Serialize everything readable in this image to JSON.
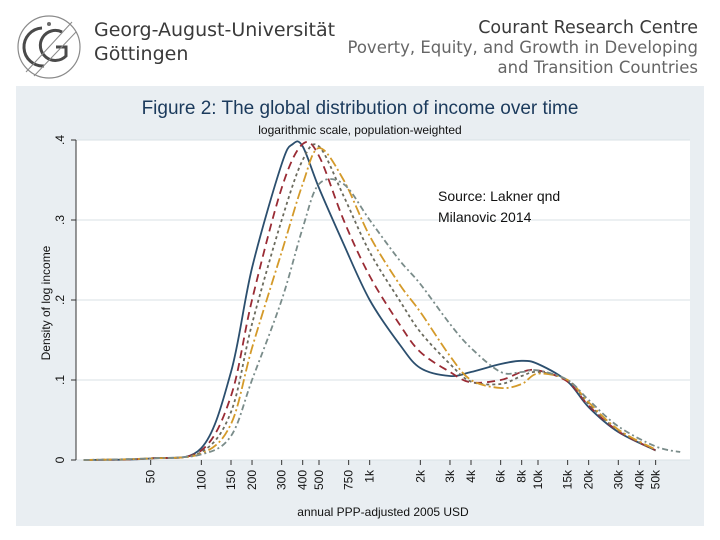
{
  "header": {
    "university_line1": "Georg-August-Universität",
    "university_line2": "Göttingen",
    "centre_line1": "Courant Research Centre",
    "centre_line2": "Poverty, Equity, and Growth in Developing",
    "centre_line3": "and Transition Countries"
  },
  "note": {
    "line1": "Source: Lakner qnd",
    "line2": "Milanovic 2014"
  },
  "chart_data": {
    "type": "line",
    "title": "Figure 2: The global distribution of income over time",
    "subtitle": "logarithmic scale, population-weighted",
    "xlabel": "annual PPP-adjusted 2005 USD",
    "ylabel": "Density of log income",
    "x_scale": "log",
    "xlim": [
      18,
      80000
    ],
    "ylim": [
      0,
      0.4
    ],
    "x_ticks": [
      50,
      100,
      150,
      200,
      300,
      400,
      500,
      750,
      1000,
      2000,
      3000,
      4000,
      6000,
      8000,
      10000,
      15000,
      20000,
      30000,
      40000,
      50000
    ],
    "x_tick_labels": [
      "50",
      "100",
      "150",
      "200",
      "300",
      "400",
      "500",
      "750",
      "1k",
      "2k",
      "3k",
      "4k",
      "6k",
      "8k",
      "10k",
      "15k",
      "20k",
      "30k",
      "40k",
      "50k"
    ],
    "y_ticks": [
      0,
      0.1,
      0.2,
      0.3,
      0.4
    ],
    "y_tick_labels": [
      "0",
      ".1",
      ".2",
      ".3",
      ".4"
    ],
    "grid": true,
    "legend": "none",
    "series": [
      {
        "color": "#2c4f6e",
        "dash": "solid",
        "x": [
          20,
          50,
          100,
          150,
          200,
          300,
          350,
          400,
          500,
          700,
          1000,
          1500,
          2000,
          3000,
          4000,
          6000,
          8000,
          10000,
          15000,
          20000,
          30000,
          50000
        ],
        "y": [
          0,
          0.002,
          0.015,
          0.11,
          0.24,
          0.37,
          0.395,
          0.392,
          0.34,
          0.27,
          0.2,
          0.145,
          0.115,
          0.105,
          0.11,
          0.12,
          0.124,
          0.12,
          0.098,
          0.066,
          0.035,
          0.012
        ]
      },
      {
        "color": "#9a2b34",
        "dash": "8,5",
        "x": [
          20,
          50,
          100,
          150,
          200,
          300,
          400,
          500,
          700,
          1000,
          1500,
          2000,
          3000,
          4000,
          6000,
          8000,
          10000,
          15000,
          20000,
          30000,
          50000
        ],
        "y": [
          0,
          0.002,
          0.012,
          0.08,
          0.2,
          0.34,
          0.395,
          0.38,
          0.3,
          0.23,
          0.17,
          0.135,
          0.11,
          0.097,
          0.1,
          0.11,
          0.112,
          0.098,
          0.068,
          0.036,
          0.012
        ]
      },
      {
        "color": "#6b6b5e",
        "dash": "3,3",
        "x": [
          20,
          50,
          100,
          150,
          200,
          300,
          400,
          500,
          700,
          1000,
          1500,
          2000,
          3000,
          4000,
          6000,
          8000,
          10000,
          15000,
          20000,
          30000,
          50000
        ],
        "y": [
          0,
          0.002,
          0.01,
          0.06,
          0.17,
          0.3,
          0.375,
          0.392,
          0.33,
          0.26,
          0.2,
          0.16,
          0.12,
          0.098,
          0.095,
          0.105,
          0.11,
          0.1,
          0.07,
          0.037,
          0.012
        ]
      },
      {
        "color": "#d49a2a",
        "dash": "10,3,2,3",
        "x": [
          20,
          50,
          100,
          150,
          200,
          300,
          400,
          500,
          700,
          1000,
          1500,
          2000,
          3000,
          4000,
          6000,
          8000,
          10000,
          15000,
          20000,
          30000,
          50000
        ],
        "y": [
          0,
          0.002,
          0.008,
          0.045,
          0.14,
          0.26,
          0.345,
          0.39,
          0.35,
          0.28,
          0.22,
          0.185,
          0.13,
          0.1,
          0.09,
          0.095,
          0.108,
          0.1,
          0.072,
          0.038,
          0.013
        ]
      },
      {
        "color": "#7a8c8a",
        "dash": "6,3,2,3",
        "x": [
          20,
          50,
          100,
          150,
          200,
          300,
          400,
          500,
          700,
          1000,
          1500,
          2000,
          3000,
          4000,
          6000,
          8000,
          10000,
          15000,
          20000,
          30000,
          50000,
          70000
        ],
        "y": [
          0,
          0.002,
          0.007,
          0.03,
          0.1,
          0.2,
          0.29,
          0.345,
          0.345,
          0.3,
          0.25,
          0.22,
          0.17,
          0.14,
          0.11,
          0.11,
          0.112,
          0.1,
          0.075,
          0.042,
          0.017,
          0.01
        ]
      }
    ]
  }
}
